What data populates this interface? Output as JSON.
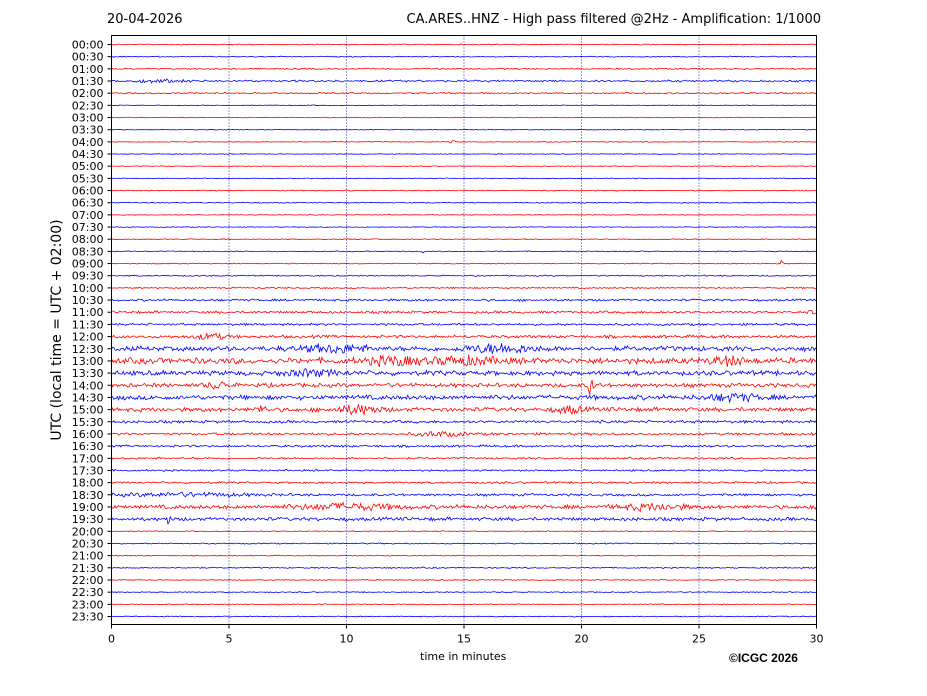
{
  "header": {
    "date": "20-04-2026",
    "title": "CA.ARES..HNZ - High pass filtered @2Hz - Amplification: 1/1000"
  },
  "copyright": "©ICGC 2026",
  "chart_data": {
    "type": "line",
    "title": "CA.ARES..HNZ - High pass filtered @2Hz - Amplification: 1/1000",
    "xlabel": "time in minutes",
    "ylabel": "UTC (local time = UTC + 02:00)",
    "xlim": [
      0,
      30
    ],
    "xticks": [
      0,
      5,
      10,
      15,
      20,
      25,
      30
    ],
    "grid": "vertical dotted lines every 5 minutes",
    "trace_colors": [
      "#ff0000",
      "#0000ff"
    ],
    "rows": [
      "00:00",
      "00:30",
      "01:00",
      "01:30",
      "02:00",
      "02:30",
      "03:00",
      "03:30",
      "04:00",
      "04:30",
      "05:00",
      "05:30",
      "06:00",
      "06:30",
      "07:00",
      "07:30",
      "08:00",
      "08:30",
      "09:00",
      "09:30",
      "10:00",
      "10:30",
      "11:00",
      "11:30",
      "12:00",
      "12:30",
      "13:00",
      "13:30",
      "14:00",
      "14:30",
      "15:00",
      "15:30",
      "16:00",
      "16:30",
      "17:00",
      "17:30",
      "18:00",
      "18:30",
      "19:00",
      "19:30",
      "20:00",
      "20:30",
      "21:00",
      "21:30",
      "22:00",
      "22:30",
      "23:00",
      "23:30"
    ],
    "noise_level": [
      0.4,
      0.4,
      0.5,
      0.8,
      0.6,
      0.3,
      0.3,
      0.3,
      0.3,
      0.3,
      0.3,
      0.3,
      0.4,
      0.4,
      0.3,
      0.3,
      0.4,
      0.4,
      0.4,
      0.5,
      0.6,
      0.9,
      1.0,
      0.9,
      1.2,
      2.0,
      2.4,
      1.9,
      1.6,
      1.9,
      1.7,
      1.1,
      1.0,
      0.9,
      0.8,
      0.7,
      0.8,
      1.0,
      1.6,
      1.4,
      0.4,
      0.5,
      0.4,
      0.5,
      0.4,
      0.4,
      0.4,
      0.4
    ],
    "bursts": [
      {
        "row": 3,
        "x": 2.0,
        "width": 1.5,
        "amp": 1.2
      },
      {
        "row": 8,
        "x": 14.5,
        "width": 0.2,
        "amp": 1.5
      },
      {
        "row": 17,
        "x": 13.2,
        "width": 0.1,
        "amp": 2.5
      },
      {
        "row": 18,
        "x": 28.5,
        "width": 0.1,
        "amp": 5
      },
      {
        "row": 22,
        "x": 29.8,
        "width": 0.1,
        "amp": 5
      },
      {
        "row": 24,
        "x": 4.2,
        "width": 1.0,
        "amp": 2.5
      },
      {
        "row": 25,
        "x": 9.5,
        "width": 2.0,
        "amp": 3
      },
      {
        "row": 25,
        "x": 16.5,
        "width": 2.0,
        "amp": 3.5
      },
      {
        "row": 26,
        "x": 12.0,
        "width": 1.5,
        "amp": 3.5
      },
      {
        "row": 26,
        "x": 15.0,
        "width": 2.0,
        "amp": 3
      },
      {
        "row": 26,
        "x": 26.2,
        "width": 1.0,
        "amp": 3.5
      },
      {
        "row": 27,
        "x": 8.5,
        "width": 1.5,
        "amp": 2.5
      },
      {
        "row": 28,
        "x": 4.5,
        "width": 0.6,
        "amp": 3
      },
      {
        "row": 28,
        "x": 20.4,
        "width": 0.15,
        "amp": 11
      },
      {
        "row": 29,
        "x": 26.5,
        "width": 1.5,
        "amp": 3
      },
      {
        "row": 30,
        "x": 10.5,
        "width": 1.2,
        "amp": 4
      },
      {
        "row": 30,
        "x": 19.5,
        "width": 0.8,
        "amp": 3
      },
      {
        "row": 30,
        "x": 6.4,
        "width": 0.3,
        "amp": 4
      },
      {
        "row": 32,
        "x": 14.0,
        "width": 1.5,
        "amp": 2
      },
      {
        "row": 37,
        "x": 3.0,
        "width": 4.0,
        "amp": 1.5
      },
      {
        "row": 38,
        "x": 10.0,
        "width": 3.0,
        "amp": 2.5
      },
      {
        "row": 38,
        "x": 23.0,
        "width": 2.0,
        "amp": 2.5
      },
      {
        "row": 39,
        "x": 2.45,
        "width": 0.1,
        "amp": 9
      }
    ]
  }
}
